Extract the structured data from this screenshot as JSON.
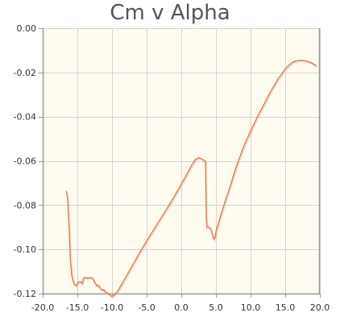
{
  "chart_data": {
    "type": "line",
    "title": "Cm v Alpha",
    "xlabel": "",
    "ylabel": "",
    "xlim": [
      -20,
      20
    ],
    "ylim": [
      -0.12,
      0
    ],
    "x_ticks": [
      -20,
      -15,
      -10,
      -5,
      0,
      5,
      10,
      15,
      20
    ],
    "x_tick_labels": [
      "-20.0",
      "-15.0",
      "-10.0",
      "-5.0",
      "0.0",
      "5.0",
      "10.0",
      "15.0",
      "20.0"
    ],
    "y_ticks": [
      0,
      -0.02,
      -0.04,
      -0.06,
      -0.08,
      -0.1,
      -0.12
    ],
    "y_tick_labels": [
      "0.00",
      "-0.02",
      "-0.04",
      "-0.06",
      "-0.08",
      "-0.10",
      "-0.12"
    ],
    "grid": true,
    "plot_background": "#fffbf0",
    "grid_color": "#d4d4d4",
    "axis_color": "#999999",
    "series": [
      {
        "color": "#f07040",
        "x": [
          -16.6,
          -16.4,
          -16.2,
          -16.0,
          -15.8,
          -15.5,
          -15.2,
          -14.9,
          -14.6,
          -14.3,
          -14.1,
          -13.8,
          -13.5,
          -13.2,
          -12.8,
          -12.5,
          -12.2,
          -12.0,
          -11.8,
          -11.6,
          -11.4,
          -11.2,
          -11.0,
          -10.8,
          -10.5,
          -10.2,
          -10.0,
          -9.8,
          -9.5,
          -9.2,
          -9.0,
          -8.0,
          -7.0,
          -6.0,
          -5.0,
          -4.0,
          -3.0,
          -2.0,
          -1.0,
          0.0,
          1.0,
          1.5,
          2.0,
          2.5,
          3.0,
          3.3,
          3.5,
          3.6,
          3.7,
          3.9,
          4.2,
          4.5,
          4.7,
          4.9,
          5.0,
          6.0,
          7.0,
          8.0,
          9.0,
          10.0,
          11.0,
          12.0,
          13.0,
          14.0,
          15.0,
          15.5,
          16.0,
          16.5,
          17.0,
          17.5,
          18.0,
          18.5,
          19.0,
          19.5
        ],
        "y": [
          -0.0735,
          -0.0775,
          -0.09,
          -0.105,
          -0.112,
          -0.1155,
          -0.1165,
          -0.115,
          -0.1145,
          -0.1155,
          -0.113,
          -0.1128,
          -0.113,
          -0.1128,
          -0.113,
          -0.115,
          -0.1165,
          -0.1162,
          -0.117,
          -0.118,
          -0.1185,
          -0.1182,
          -0.1192,
          -0.1195,
          -0.12,
          -0.121,
          -0.1212,
          -0.121,
          -0.12,
          -0.119,
          -0.118,
          -0.1125,
          -0.107,
          -0.1015,
          -0.0962,
          -0.0912,
          -0.0862,
          -0.0812,
          -0.076,
          -0.0705,
          -0.065,
          -0.062,
          -0.0595,
          -0.0585,
          -0.0592,
          -0.0598,
          -0.06,
          -0.085,
          -0.09,
          -0.0898,
          -0.0905,
          -0.0932,
          -0.0955,
          -0.0945,
          -0.092,
          -0.0815,
          -0.072,
          -0.062,
          -0.0535,
          -0.0465,
          -0.04,
          -0.034,
          -0.028,
          -0.0228,
          -0.0185,
          -0.0168,
          -0.0155,
          -0.0148,
          -0.0145,
          -0.0145,
          -0.0148,
          -0.0153,
          -0.016,
          -0.017
        ]
      }
    ]
  }
}
